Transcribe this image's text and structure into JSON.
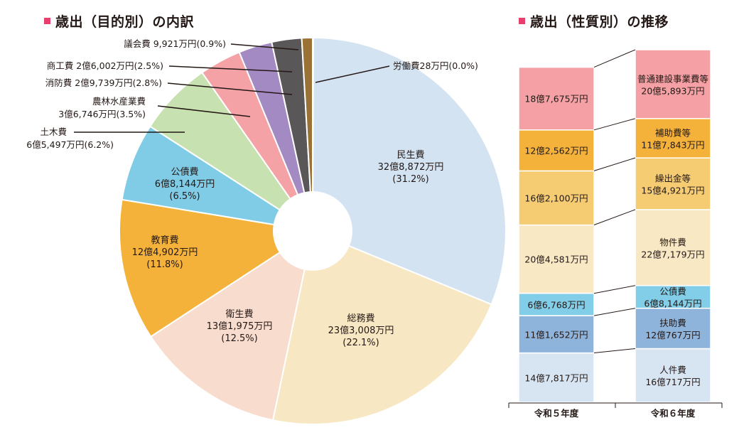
{
  "chart_data": [
    {
      "type": "pie",
      "title": "歳出（目的別）の内訳",
      "slices": [
        {
          "name": "民生費",
          "amount": "32億8,872万円",
          "percent": "(31.2%)",
          "value": 31.2,
          "color": "#d3e3f2"
        },
        {
          "name": "総務費",
          "amount": "23億3,008万円",
          "percent": "(22.1%)",
          "value": 22.1,
          "color": "#f8e7c3"
        },
        {
          "name": "衛生費",
          "amount": "13億1,975万円",
          "percent": "(12.5%)",
          "value": 12.5,
          "color": "#f8dccd"
        },
        {
          "name": "教育費",
          "amount": "12億4,902万円",
          "percent": "(11.8%)",
          "value": 11.8,
          "color": "#f5b23b"
        },
        {
          "name": "公債費",
          "amount": "6億8,144万円",
          "percent": "(6.5%)",
          "value": 6.5,
          "color": "#80cce6"
        },
        {
          "name": "土木費",
          "amount": "6億5,497万円",
          "percent": "(6.2%)",
          "value": 6.2,
          "color": "#c8e1b0"
        },
        {
          "name": "農林水産業費",
          "amount": "3億6,746万円",
          "percent": "(3.5%)",
          "value": 3.5,
          "color": "#f4a2a6"
        },
        {
          "name": "消防費",
          "amount": "2億9,739万円",
          "percent": "(2.8%)",
          "value": 2.8,
          "color": "#a48ac3"
        },
        {
          "name": "商工費",
          "amount": "2億6,002万円",
          "percent": "(2.5%)",
          "value": 2.5,
          "color": "#595757"
        },
        {
          "name": "議会費",
          "amount": "9,921万円",
          "percent": "(0.9%)",
          "value": 0.9,
          "color": "#9a7236"
        },
        {
          "name": "労働費",
          "amount": "28万円",
          "percent": "(0.0%)",
          "value": 0.0,
          "color": "#2b2b2b"
        }
      ]
    },
    {
      "type": "stacked-bar",
      "title": "歳出（性質別）の推移",
      "categories": [
        "令和５年度",
        "令和６年度"
      ],
      "series": [
        {
          "name": "人件費",
          "values": [
            147817,
            160717
          ],
          "labels": [
            "14億7,817万円",
            "16億717万円"
          ],
          "color": "#d7e5f3"
        },
        {
          "name": "扶助費",
          "values": [
            111652,
            120767
          ],
          "labels": [
            "11億1,652万円",
            "12億767万円"
          ],
          "color": "#8fb4dc"
        },
        {
          "name": "公債費",
          "values": [
            66768,
            68144
          ],
          "labels": [
            "6億6,768万円",
            "6億8,144万円"
          ],
          "color": "#82cde7"
        },
        {
          "name": "物件費",
          "values": [
            204581,
            227179
          ],
          "labels": [
            "20億4,581万円",
            "22億7,179万円"
          ],
          "color": "#f9e8c4"
        },
        {
          "name": "繰出金等",
          "values": [
            162100,
            154921
          ],
          "labels": [
            "16億2,100万円",
            "15億4,921万円"
          ],
          "color": "#f6cc73"
        },
        {
          "name": "補助費等",
          "values": [
            122562,
            117843
          ],
          "labels": [
            "12億2,562万円",
            "11億7,843万円"
          ],
          "color": "#f5b23b"
        },
        {
          "name": "普通建設事業費等",
          "values": [
            187675,
            205893
          ],
          "labels": [
            "18億7,675万円",
            "20億5,893万円"
          ],
          "color": "#f4a0a4"
        }
      ]
    }
  ]
}
